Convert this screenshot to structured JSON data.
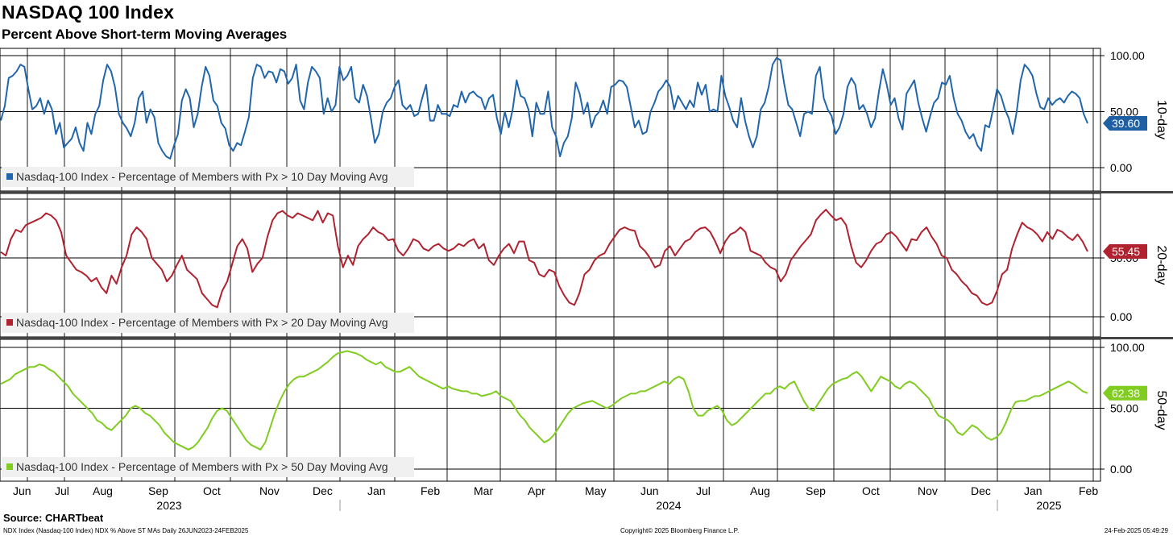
{
  "header": {
    "title": "NASDAQ 100 Index",
    "subtitle": "Percent Above Short-term Moving Averages"
  },
  "footer": {
    "source": "Source: CHARTbeat",
    "left": "NDX Index (Nasdaq-100 Index) NDX % Above ST MAs  Daily 26JUN2023-24FEB2025",
    "copyright": "Copyright© 2025 Bloomberg Finance L.P.",
    "timestamp": "24-Feb-2025 05:49:29"
  },
  "chart_data": {
    "type": "line",
    "x_axis": {
      "months": [
        "Jun",
        "Jul",
        "Aug",
        "Sep",
        "Oct",
        "Nov",
        "Dec",
        "Jan",
        "Feb",
        "Mar",
        "Apr",
        "May",
        "Jun",
        "Jul",
        "Aug",
        "Sep",
        "Oct",
        "Nov",
        "Dec",
        "Jan",
        "Feb"
      ],
      "years": [
        "2023",
        "2024",
        "2025"
      ],
      "start": "2023-06-26",
      "end": "2025-02-24"
    },
    "panels": [
      {
        "id": "10-day",
        "axis_title": "10-day",
        "legend": "Nasdaq-100 Index - Percentage of Members with Px > 10 Day Moving Avg",
        "color": "#2166ac",
        "badge_color": "#1f5fa3",
        "last_value": "39.60",
        "ylim": [
          0,
          100
        ],
        "ticks": [
          "100.00",
          "50.00",
          "0.00"
        ],
        "values": [
          42,
          55,
          80,
          82,
          86,
          92,
          90,
          70,
          52,
          55,
          62,
          48,
          60,
          52,
          30,
          40,
          18,
          22,
          26,
          36,
          22,
          15,
          40,
          30,
          48,
          55,
          78,
          92,
          86,
          72,
          48,
          40,
          35,
          28,
          40,
          62,
          68,
          40,
          52,
          45,
          22,
          15,
          10,
          8,
          20,
          30,
          60,
          70,
          62,
          36,
          48,
          72,
          90,
          82,
          60,
          55,
          40,
          35,
          20,
          15,
          22,
          20,
          32,
          45,
          80,
          92,
          90,
          80,
          86,
          85,
          76,
          88,
          86,
          75,
          80,
          92,
          60,
          52,
          76,
          90,
          86,
          80,
          48,
          62,
          50,
          56,
          90,
          78,
          82,
          90,
          62,
          58,
          74,
          64,
          44,
          22,
          30,
          50,
          58,
          62,
          72,
          78,
          56,
          52,
          56,
          46,
          48,
          62,
          74,
          42,
          42,
          56,
          48,
          48,
          46,
          56,
          54,
          68,
          58,
          66,
          68,
          64,
          62,
          52,
          62,
          65,
          44,
          30,
          50,
          36,
          52,
          78,
          64,
          62,
          52,
          28,
          58,
          48,
          48,
          68,
          36,
          28,
          10,
          22,
          28,
          44,
          76,
          66,
          48,
          58,
          36,
          46,
          50,
          60,
          48,
          72,
          74,
          78,
          77,
          72,
          54,
          36,
          42,
          30,
          32,
          50,
          58,
          68,
          72,
          78,
          72,
          52,
          64,
          58,
          52,
          60,
          54,
          76,
          65,
          74,
          50,
          52,
          50,
          82,
          64,
          54,
          42,
          36,
          62,
          42,
          28,
          18,
          28,
          52,
          58,
          72,
          92,
          98,
          96,
          74,
          56,
          52,
          40,
          28,
          48,
          50,
          48,
          82,
          90,
          62,
          52,
          46,
          30,
          36,
          48,
          72,
          80,
          74,
          52,
          56,
          48,
          36,
          44,
          68,
          88,
          74,
          56,
          62,
          44,
          34,
          66,
          72,
          78,
          58,
          44,
          32,
          46,
          58,
          62,
          76,
          74,
          82,
          62,
          48,
          42,
          32,
          26,
          30,
          20,
          15,
          38,
          36,
          52,
          70,
          64,
          52,
          44,
          30,
          50,
          78,
          92,
          88,
          82,
          66,
          54,
          52,
          62,
          56,
          60,
          62,
          58,
          64,
          68,
          66,
          62,
          48,
          39.6
        ]
      },
      {
        "id": "20-day",
        "axis_title": "20-day",
        "legend": "Nasdaq-100 Index - Percentage of Members with Px > 20 Day Moving Avg",
        "color": "#b0222f",
        "badge_color": "#b0222f",
        "last_value": "55.45",
        "ylim": [
          0,
          100
        ],
        "ticks": [
          "50.00",
          "0.00"
        ],
        "values": [
          55,
          52,
          66,
          74,
          72,
          78,
          80,
          82,
          84,
          88,
          86,
          82,
          72,
          52,
          46,
          40,
          38,
          35,
          30,
          33,
          25,
          20,
          35,
          28,
          42,
          52,
          70,
          76,
          72,
          66,
          50,
          45,
          40,
          30,
          35,
          44,
          52,
          40,
          36,
          32,
          20,
          15,
          10,
          8,
          22,
          30,
          45,
          60,
          66,
          58,
          38,
          45,
          50,
          68,
          82,
          88,
          90,
          86,
          84,
          88,
          86,
          84,
          82,
          90,
          80,
          88,
          86,
          60,
          42,
          52,
          44,
          60,
          66,
          70,
          76,
          72,
          70,
          65,
          66,
          56,
          52,
          58,
          66,
          64,
          58,
          56,
          60,
          62,
          58,
          56,
          58,
          62,
          60,
          64,
          66,
          58,
          62,
          48,
          44,
          52,
          58,
          62,
          54,
          64,
          64,
          48,
          46,
          36,
          34,
          40,
          38,
          26,
          18,
          12,
          10,
          20,
          36,
          40,
          48,
          52,
          54,
          62,
          68,
          74,
          76,
          74,
          73,
          60,
          56,
          50,
          42,
          44,
          56,
          60,
          52,
          58,
          64,
          66,
          72,
          75,
          76,
          72,
          64,
          54,
          64,
          70,
          72,
          76,
          72,
          56,
          54,
          52,
          46,
          42,
          40,
          30,
          36,
          48,
          54,
          60,
          65,
          70,
          82,
          87,
          91,
          86,
          82,
          84,
          78,
          60,
          46,
          42,
          48,
          56,
          62,
          64,
          70,
          72,
          68,
          62,
          56,
          66,
          65,
          72,
          76,
          68,
          62,
          52,
          50,
          40,
          36,
          30,
          26,
          20,
          18,
          12,
          10,
          12,
          22,
          36,
          40,
          58,
          70,
          80,
          76,
          74,
          70,
          64,
          72,
          66,
          74,
          72,
          68,
          65,
          70,
          64,
          55.45
        ]
      },
      {
        "id": "50-day",
        "axis_title": "50-day",
        "legend": "Nasdaq-100 Index - Percentage of Members with Px > 50 Day Moving Avg",
        "color": "#80cc20",
        "badge_color": "#80cc20",
        "last_value": "62.38",
        "ylim": [
          0,
          100
        ],
        "ticks": [
          "100.00",
          "50.00",
          "0.00"
        ],
        "values": [
          70,
          72,
          74,
          78,
          80,
          82,
          84,
          84,
          86,
          85,
          82,
          80,
          76,
          72,
          68,
          62,
          58,
          54,
          50,
          46,
          40,
          38,
          34,
          32,
          36,
          40,
          44,
          50,
          52,
          50,
          46,
          44,
          40,
          36,
          30,
          26,
          22,
          20,
          18,
          16,
          18,
          22,
          28,
          34,
          42,
          48,
          50,
          48,
          42,
          36,
          30,
          24,
          20,
          18,
          16,
          22,
          34,
          46,
          56,
          64,
          70,
          74,
          76,
          76,
          78,
          80,
          82,
          85,
          88,
          92,
          95,
          96,
          97,
          96,
          95,
          93,
          90,
          88,
          86,
          88,
          84,
          82,
          80,
          80,
          82,
          84,
          80,
          76,
          74,
          72,
          70,
          68,
          66,
          68,
          66,
          65,
          64,
          64,
          62,
          62,
          60,
          61,
          62,
          64,
          60,
          58,
          56,
          50,
          44,
          40,
          34,
          30,
          26,
          22,
          24,
          28,
          34,
          40,
          46,
          50,
          52,
          54,
          55,
          56,
          54,
          52,
          50,
          52,
          55,
          58,
          60,
          62,
          62,
          64,
          64,
          66,
          68,
          70,
          72,
          70,
          74,
          76,
          74,
          64,
          50,
          44,
          44,
          48,
          50,
          52,
          48,
          40,
          36,
          38,
          42,
          46,
          50,
          54,
          58,
          62,
          62,
          66,
          68,
          66,
          70,
          72,
          64,
          56,
          50,
          48,
          54,
          60,
          66,
          70,
          72,
          74,
          75,
          78,
          80,
          76,
          70,
          64,
          70,
          76,
          74,
          72,
          68,
          66,
          70,
          72,
          70,
          66,
          62,
          58,
          50,
          44,
          42,
          40,
          36,
          30,
          28,
          32,
          36,
          34,
          30,
          26,
          24,
          26,
          30,
          38,
          48,
          55,
          56,
          56,
          58,
          60,
          60,
          62,
          64,
          66,
          68,
          70,
          72,
          70,
          67,
          64,
          62.38
        ]
      }
    ]
  }
}
